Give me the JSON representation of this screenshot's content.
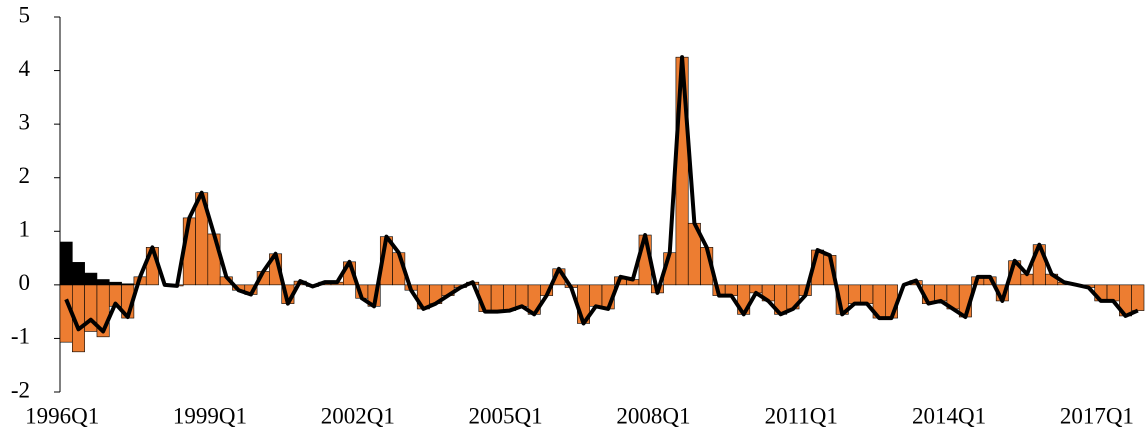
{
  "chart_data": {
    "type": "bar",
    "stacked": true,
    "categories": [
      "1996Q1",
      null,
      null,
      null,
      null,
      null,
      null,
      null,
      null,
      null,
      null,
      null,
      "1999Q1",
      null,
      null,
      null,
      null,
      null,
      null,
      null,
      null,
      null,
      null,
      null,
      "2002Q1",
      null,
      null,
      null,
      null,
      null,
      null,
      null,
      null,
      null,
      null,
      null,
      "2005Q1",
      null,
      null,
      null,
      null,
      null,
      null,
      null,
      null,
      null,
      null,
      null,
      "2008Q1",
      null,
      null,
      null,
      null,
      null,
      null,
      null,
      null,
      null,
      null,
      null,
      "2011Q1",
      null,
      null,
      null,
      null,
      null,
      null,
      null,
      null,
      null,
      null,
      null,
      "2014Q1",
      null,
      null,
      null,
      null,
      null,
      null,
      null,
      null,
      null,
      null,
      null,
      "2017Q1",
      null,
      null,
      null
    ],
    "series": [
      {
        "color": "#ed7d31",
        "values": [
          -1.07,
          -1.25,
          -0.87,
          -0.97,
          -0.4,
          -0.62,
          0.15,
          0.7,
          0.0,
          -0.02,
          1.25,
          1.72,
          0.95,
          0.15,
          -0.1,
          -0.18,
          0.25,
          0.58,
          -0.35,
          0.07,
          -0.03,
          0.05,
          0.05,
          0.43,
          -0.25,
          -0.4,
          0.9,
          0.6,
          -0.1,
          -0.45,
          -0.35,
          -0.2,
          -0.05,
          0.05,
          -0.5,
          -0.5,
          -0.48,
          -0.4,
          -0.55,
          -0.2,
          0.3,
          -0.05,
          -0.72,
          -0.4,
          -0.45,
          0.15,
          0.1,
          0.93,
          -0.15,
          0.6,
          4.25,
          1.15,
          0.7,
          -0.2,
          -0.2,
          -0.55,
          -0.15,
          -0.3,
          -0.55,
          -0.45,
          -0.2,
          0.65,
          0.55,
          -0.55,
          -0.35,
          -0.35,
          -0.62,
          -0.62,
          0.0,
          0.08,
          -0.35,
          -0.3,
          -0.45,
          -0.6,
          0.15,
          0.15,
          -0.3,
          0.45,
          0.2,
          0.75,
          0.2,
          0.05,
          0.0,
          -0.05,
          -0.3,
          -0.3,
          -0.58,
          -0.48
        ]
      },
      {
        "color": "#000000",
        "values": [
          0.8,
          0.42,
          0.22,
          0.1,
          0.05,
          0.02,
          0,
          0,
          0,
          0,
          0,
          0,
          0,
          0,
          0,
          0,
          0,
          0,
          0,
          0,
          0,
          0,
          0,
          0,
          0,
          0,
          0,
          0,
          0,
          0,
          0,
          0,
          0,
          0,
          0,
          0,
          0,
          0,
          0,
          0,
          0,
          0,
          0,
          0,
          0,
          0,
          0,
          0,
          0,
          0,
          0,
          0,
          0,
          0,
          0,
          0,
          0,
          0,
          0,
          0,
          0,
          0,
          0,
          0,
          0,
          0,
          0,
          0,
          0,
          0,
          0,
          0,
          0,
          0,
          0,
          0,
          0,
          0,
          0,
          0,
          0,
          0,
          0,
          0,
          0,
          0,
          0,
          0
        ]
      },
      {
        "type": "line",
        "color": "#000000",
        "values": [
          -0.27,
          -0.83,
          -0.65,
          -0.87,
          -0.35,
          -0.6,
          0.15,
          0.7,
          0.0,
          -0.02,
          1.25,
          1.72,
          0.95,
          0.15,
          -0.1,
          -0.18,
          0.25,
          0.58,
          -0.35,
          0.07,
          -0.03,
          0.05,
          0.05,
          0.43,
          -0.25,
          -0.4,
          0.9,
          0.6,
          -0.1,
          -0.45,
          -0.35,
          -0.2,
          -0.05,
          0.05,
          -0.5,
          -0.5,
          -0.48,
          -0.4,
          -0.55,
          -0.2,
          0.3,
          -0.05,
          -0.72,
          -0.4,
          -0.45,
          0.15,
          0.1,
          0.93,
          -0.15,
          0.6,
          4.25,
          1.15,
          0.7,
          -0.2,
          -0.2,
          -0.55,
          -0.15,
          -0.3,
          -0.55,
          -0.45,
          -0.2,
          0.65,
          0.55,
          -0.55,
          -0.35,
          -0.35,
          -0.62,
          -0.62,
          0.0,
          0.08,
          -0.35,
          -0.3,
          -0.45,
          -0.6,
          0.15,
          0.15,
          -0.3,
          0.45,
          0.2,
          0.75,
          0.2,
          0.05,
          0.0,
          -0.05,
          -0.3,
          -0.3,
          -0.58,
          -0.48
        ]
      }
    ],
    "ylim": [
      -2,
      5
    ],
    "yticks": [
      -2,
      -1,
      0,
      1,
      2,
      3,
      4,
      5
    ],
    "grid": false
  }
}
